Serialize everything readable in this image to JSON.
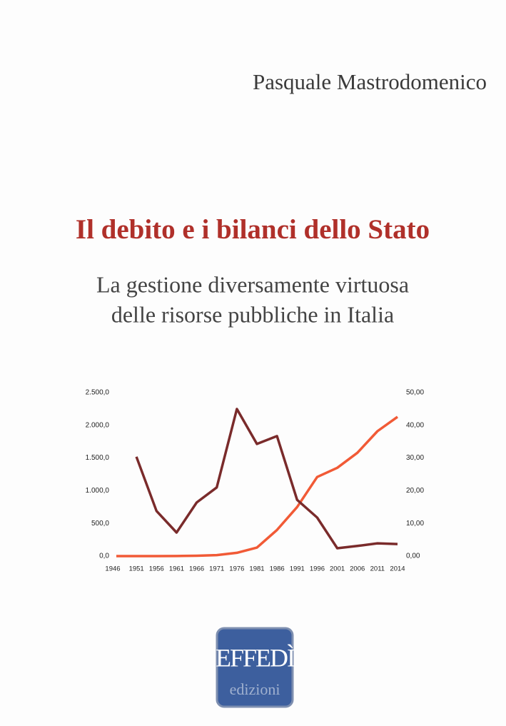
{
  "author": "Pasquale Mastrodomenico",
  "title": "Il debito e i bilanci dello Stato",
  "subtitle": [
    "La gestione diversamente virtuosa",
    "delle risorse pubbliche in Italia"
  ],
  "publisher": {
    "logo": "EFFEDÌ",
    "imprint": "edizioni"
  },
  "chart_data": {
    "type": "line",
    "categories": [
      "1946",
      "1951",
      "1956",
      "1961",
      "1966",
      "1971",
      "1976",
      "1981",
      "1986",
      "1991",
      "1996",
      "2001",
      "2006",
      "2011",
      "2014"
    ],
    "series": [
      {
        "color": "#f15a36",
        "values": [
          0,
          0,
          0,
          1,
          5,
          15,
          50,
          130,
          400,
          750,
          1210,
          1350,
          1580,
          1910,
          2130
        ]
      },
      {
        "color": "#7a2b2b",
        "axis": "y2",
        "values": [
          null,
          30.4,
          13.8,
          7.2,
          16.4,
          21.0,
          45.0,
          34.3,
          36.7,
          17.2,
          11.8,
          2.4,
          3.1,
          3.9,
          3.7
        ]
      }
    ],
    "ylim": [
      0,
      2500
    ],
    "yticks": [
      {
        "value": 0,
        "label": "0,0"
      },
      {
        "value": 500,
        "label": "500,0"
      },
      {
        "value": 1000,
        "label": "1.000,0"
      },
      {
        "value": 1500,
        "label": "1.500,0"
      },
      {
        "value": 2000,
        "label": "2.000,0"
      },
      {
        "value": 2500,
        "label": "2.500,0"
      }
    ],
    "y2lim": [
      0,
      50
    ],
    "y2ticks": [
      {
        "value": 0,
        "label": "0,00"
      },
      {
        "value": 10,
        "label": "10,00"
      },
      {
        "value": 20,
        "label": "20,00"
      },
      {
        "value": 30,
        "label": "30,00"
      },
      {
        "value": 40,
        "label": "40,00"
      },
      {
        "value": 50,
        "label": "50,00"
      }
    ]
  }
}
